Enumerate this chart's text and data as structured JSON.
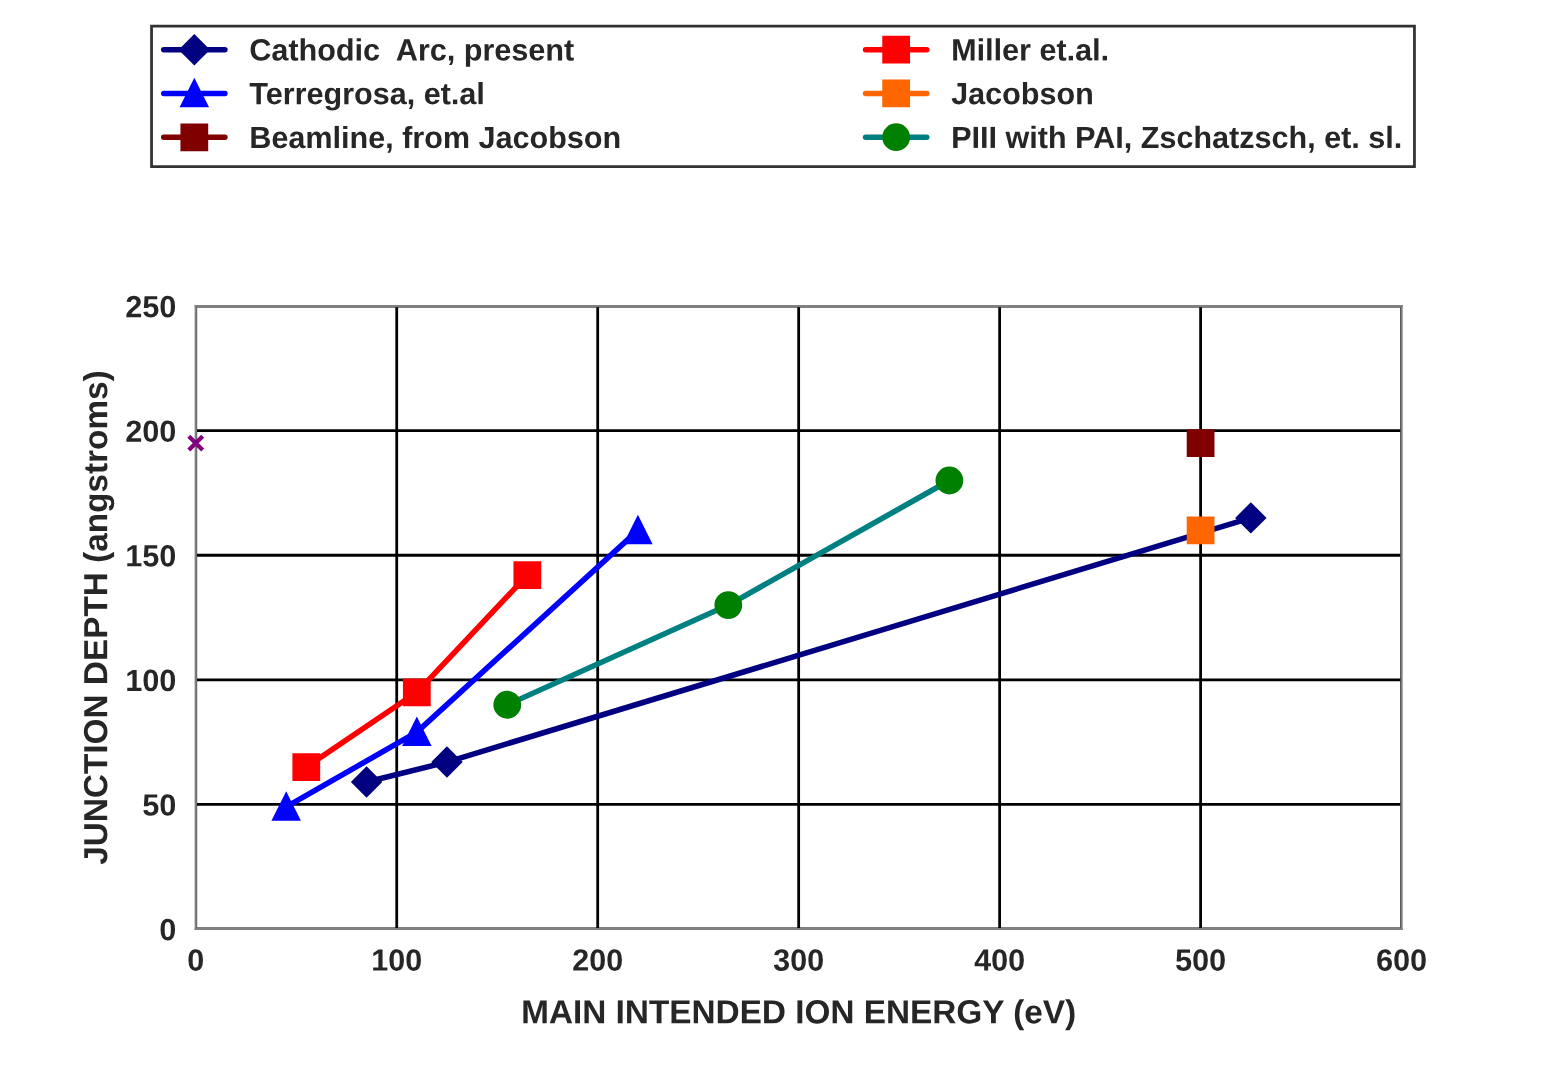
{
  "chart_data": {
    "type": "line",
    "xlabel": "MAIN INTENDED ION ENERGY (eV)",
    "ylabel": "JUNCTION DEPTH (angstroms)",
    "xlim": [
      0,
      600
    ],
    "xticks": [
      0,
      100,
      200,
      300,
      400,
      500,
      600
    ],
    "ylim": [
      0,
      250
    ],
    "yticks": [
      0,
      50,
      100,
      150,
      200,
      250
    ],
    "grid": true,
    "legend": "top",
    "series": [
      {
        "name": "Cathodic  Arc, present",
        "color": "#000080",
        "marker": "diamond",
        "x": [
          85,
          125,
          525
        ],
        "values": [
          59,
          67,
          165
        ]
      },
      {
        "name": "Terregrosa, et.al",
        "color": "#0000ff",
        "marker": "triangle",
        "x": [
          45,
          110,
          220
        ],
        "values": [
          49,
          79,
          160
        ]
      },
      {
        "name": "Beamline, from Jacobson",
        "color": "#800000",
        "marker": "square",
        "x": [
          500
        ],
        "values": [
          195
        ]
      },
      {
        "name": "Miller et.al.",
        "color": "#ff0000",
        "marker": "square",
        "x": [
          55,
          110,
          165
        ],
        "values": [
          65,
          95,
          142
        ]
      },
      {
        "name": "Jacobson",
        "color": "#ff6600",
        "marker": "square",
        "x": [
          500
        ],
        "values": [
          160
        ]
      },
      {
        "name": "PIII with PAI, Zschatzsch, et. sl.",
        "color": "#008080",
        "marker": "circle",
        "x": [
          155,
          265,
          375
        ],
        "values": [
          90,
          130,
          180
        ]
      },
      {
        "type": "scatter",
        "color": "#800080",
        "marker": "cross",
        "x": [
          0
        ],
        "values": [
          195
        ]
      }
    ]
  }
}
